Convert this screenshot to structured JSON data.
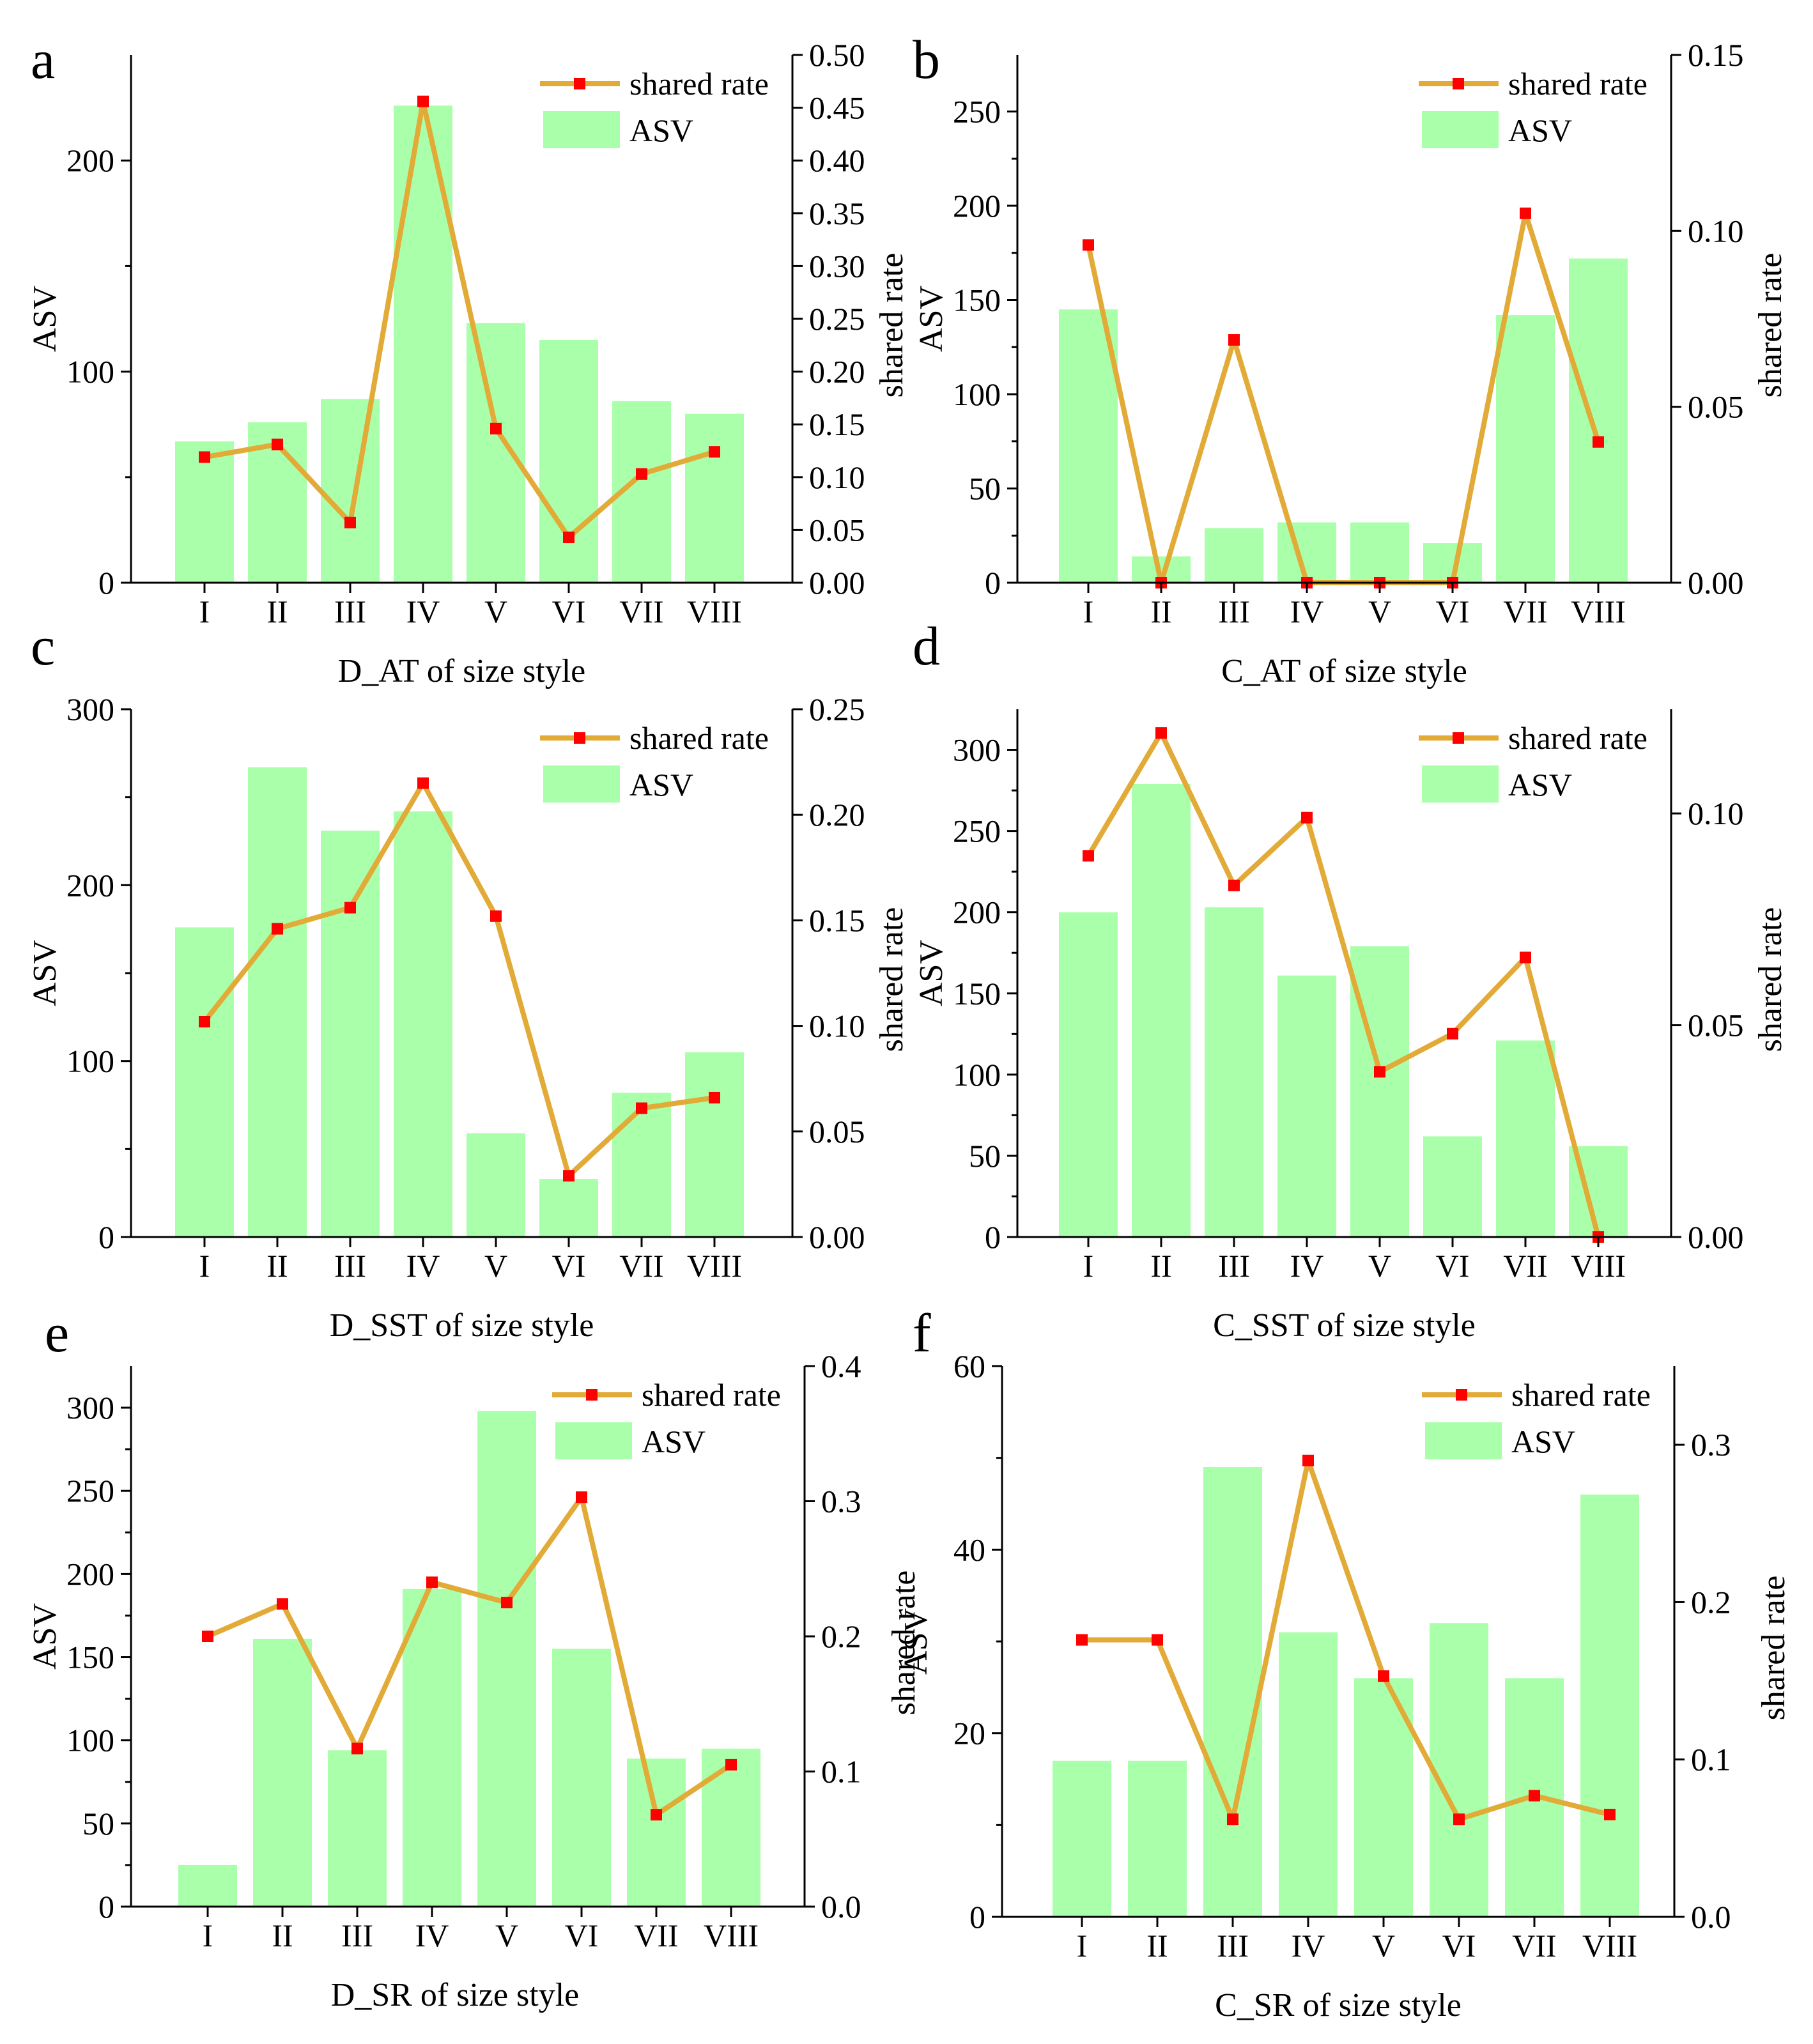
{
  "figure": {
    "id": "size-style-panels"
  },
  "chart_data": [
    {
      "panel": "a",
      "type": "bar",
      "xlabel": "D_AT of size style",
      "ylabel_left": "ASV",
      "ylabel_right": "shared rate",
      "categories": [
        "I",
        "II",
        "III",
        "IV",
        "V",
        "VI",
        "VII",
        "VIII"
      ],
      "series": [
        {
          "name": "ASV",
          "kind": "bar",
          "axis": "left",
          "color": "#aaffaa",
          "values": [
            67,
            76,
            87,
            226,
            123,
            115,
            86,
            80
          ]
        },
        {
          "name": "shared rate",
          "kind": "line",
          "axis": "right",
          "color": "#e2aa37",
          "marker_color": "#ff0000",
          "values": [
            0.119,
            0.131,
            0.057,
            0.456,
            0.146,
            0.043,
            0.103,
            0.124
          ]
        }
      ],
      "ylim_left": [
        0,
        250
      ],
      "yticks_left": [
        0,
        100,
        200
      ],
      "ylim_right": [
        0,
        0.5
      ],
      "yticks_right": [
        "0.00",
        "0.05",
        "0.10",
        "0.15",
        "0.20",
        "0.25",
        "0.30",
        "0.35",
        "0.40",
        "0.45",
        "0.50"
      ],
      "legend": [
        "shared rate",
        "ASV"
      ],
      "legend_position": "top-right"
    },
    {
      "panel": "b",
      "type": "bar",
      "xlabel": "C_AT of size style",
      "ylabel_left": "ASV",
      "ylabel_right": "shared rate",
      "categories": [
        "I",
        "II",
        "III",
        "IV",
        "V",
        "VI",
        "VII",
        "VIII"
      ],
      "series": [
        {
          "name": "ASV",
          "kind": "bar",
          "axis": "left",
          "color": "#aaffaa",
          "values": [
            145,
            14,
            29,
            32,
            32,
            21,
            142,
            172
          ]
        },
        {
          "name": "shared rate",
          "kind": "line",
          "axis": "right",
          "color": "#e2aa37",
          "marker_color": "#ff0000",
          "values": [
            0.096,
            0.0,
            0.069,
            0.0,
            0.0,
            0.0,
            0.105,
            0.04
          ]
        }
      ],
      "ylim_left": [
        0,
        280
      ],
      "yticks_left": [
        0,
        50,
        100,
        150,
        200,
        250
      ],
      "ylim_right": [
        0,
        0.15
      ],
      "yticks_right": [
        "0.00",
        "0.05",
        "0.10",
        "0.15"
      ],
      "legend": [
        "shared rate",
        "ASV"
      ],
      "legend_position": "top-right"
    },
    {
      "panel": "c",
      "type": "bar",
      "xlabel": "D_SST of size style",
      "ylabel_left": "ASV",
      "ylabel_right": "shared rate",
      "categories": [
        "I",
        "II",
        "III",
        "IV",
        "V",
        "VI",
        "VII",
        "VIII"
      ],
      "series": [
        {
          "name": "ASV",
          "kind": "bar",
          "axis": "left",
          "color": "#aaffaa",
          "values": [
            176,
            267,
            231,
            242,
            59,
            33,
            82,
            105
          ]
        },
        {
          "name": "shared rate",
          "kind": "line",
          "axis": "right",
          "color": "#e2aa37",
          "marker_color": "#ff0000",
          "values": [
            0.102,
            0.146,
            0.156,
            0.215,
            0.152,
            0.029,
            0.061,
            0.066
          ]
        }
      ],
      "ylim_left": [
        0,
        300
      ],
      "yticks_left": [
        0,
        100,
        200,
        300
      ],
      "ylim_right": [
        0,
        0.25
      ],
      "yticks_right": [
        "0.00",
        "0.05",
        "0.10",
        "0.15",
        "0.20",
        "0.25"
      ],
      "legend": [
        "shared rate",
        "ASV"
      ],
      "legend_position": "top-right"
    },
    {
      "panel": "d",
      "type": "bar",
      "xlabel": "C_SST of size style",
      "ylabel_left": "ASV",
      "ylabel_right": "shared rate",
      "categories": [
        "I",
        "II",
        "III",
        "IV",
        "V",
        "VI",
        "VII",
        "VIII"
      ],
      "series": [
        {
          "name": "ASV",
          "kind": "bar",
          "axis": "left",
          "color": "#aaffaa",
          "values": [
            200,
            279,
            203,
            161,
            179,
            62,
            121,
            56
          ]
        },
        {
          "name": "shared rate",
          "kind": "line",
          "axis": "right",
          "color": "#e2aa37",
          "marker_color": "#ff0000",
          "values": [
            0.09,
            0.119,
            0.083,
            0.099,
            0.039,
            0.048,
            0.066,
            0.0
          ]
        }
      ],
      "ylim_left": [
        0,
        325
      ],
      "yticks_left": [
        0,
        50,
        100,
        150,
        200,
        250,
        300
      ],
      "ylim_right": [
        0,
        0.1246
      ],
      "yticks_right": [
        "0.00",
        "0.05",
        "0.10"
      ],
      "legend": [
        "shared rate",
        "ASV"
      ],
      "legend_position": "top-right"
    },
    {
      "panel": "e",
      "type": "bar",
      "xlabel": "D_SR of size style",
      "ylabel_left": "ASV",
      "ylabel_right": "shared rate",
      "categories": [
        "I",
        "II",
        "III",
        "IV",
        "V",
        "VI",
        "VII",
        "VIII"
      ],
      "series": [
        {
          "name": "ASV",
          "kind": "bar",
          "axis": "left",
          "color": "#aaffaa",
          "values": [
            25,
            161,
            94,
            191,
            298,
            155,
            89,
            95
          ]
        },
        {
          "name": "shared rate",
          "kind": "line",
          "axis": "right",
          "color": "#e2aa37",
          "marker_color": "#ff0000",
          "values": [
            0.2,
            0.224,
            0.117,
            0.24,
            0.225,
            0.303,
            0.068,
            0.105
          ]
        }
      ],
      "ylim_left": [
        0,
        325
      ],
      "yticks_left": [
        0,
        50,
        100,
        150,
        200,
        250,
        300
      ],
      "ylim_right": [
        0,
        0.4
      ],
      "yticks_right": [
        "0.0",
        "0.1",
        "0.2",
        "0.3",
        "0.4"
      ],
      "legend": [
        "shared rate",
        "ASV"
      ],
      "legend_position": "top-right"
    },
    {
      "panel": "f",
      "type": "bar",
      "xlabel": "C_SR of size style",
      "ylabel_left": "ASV",
      "ylabel_right": "shared rate",
      "categories": [
        "I",
        "II",
        "III",
        "IV",
        "V",
        "VI",
        "VII",
        "VIII"
      ],
      "series": [
        {
          "name": "ASV",
          "kind": "bar",
          "axis": "left",
          "color": "#aaffaa",
          "values": [
            17,
            17,
            49,
            31,
            26,
            32,
            26,
            46
          ]
        },
        {
          "name": "shared rate",
          "kind": "line",
          "axis": "right",
          "color": "#e2aa37",
          "marker_color": "#ff0000",
          "values": [
            0.176,
            0.176,
            0.062,
            0.29,
            0.153,
            0.062,
            0.077,
            0.065
          ]
        }
      ],
      "ylim_left": [
        0,
        60
      ],
      "yticks_left": [
        0,
        20,
        40,
        60
      ],
      "ylim_right": [
        0,
        0.35
      ],
      "yticks_right": [
        "0.0",
        "0.1",
        "0.2",
        "0.3"
      ],
      "legend": [
        "shared rate",
        "ASV"
      ],
      "legend_position": "top-right"
    }
  ]
}
